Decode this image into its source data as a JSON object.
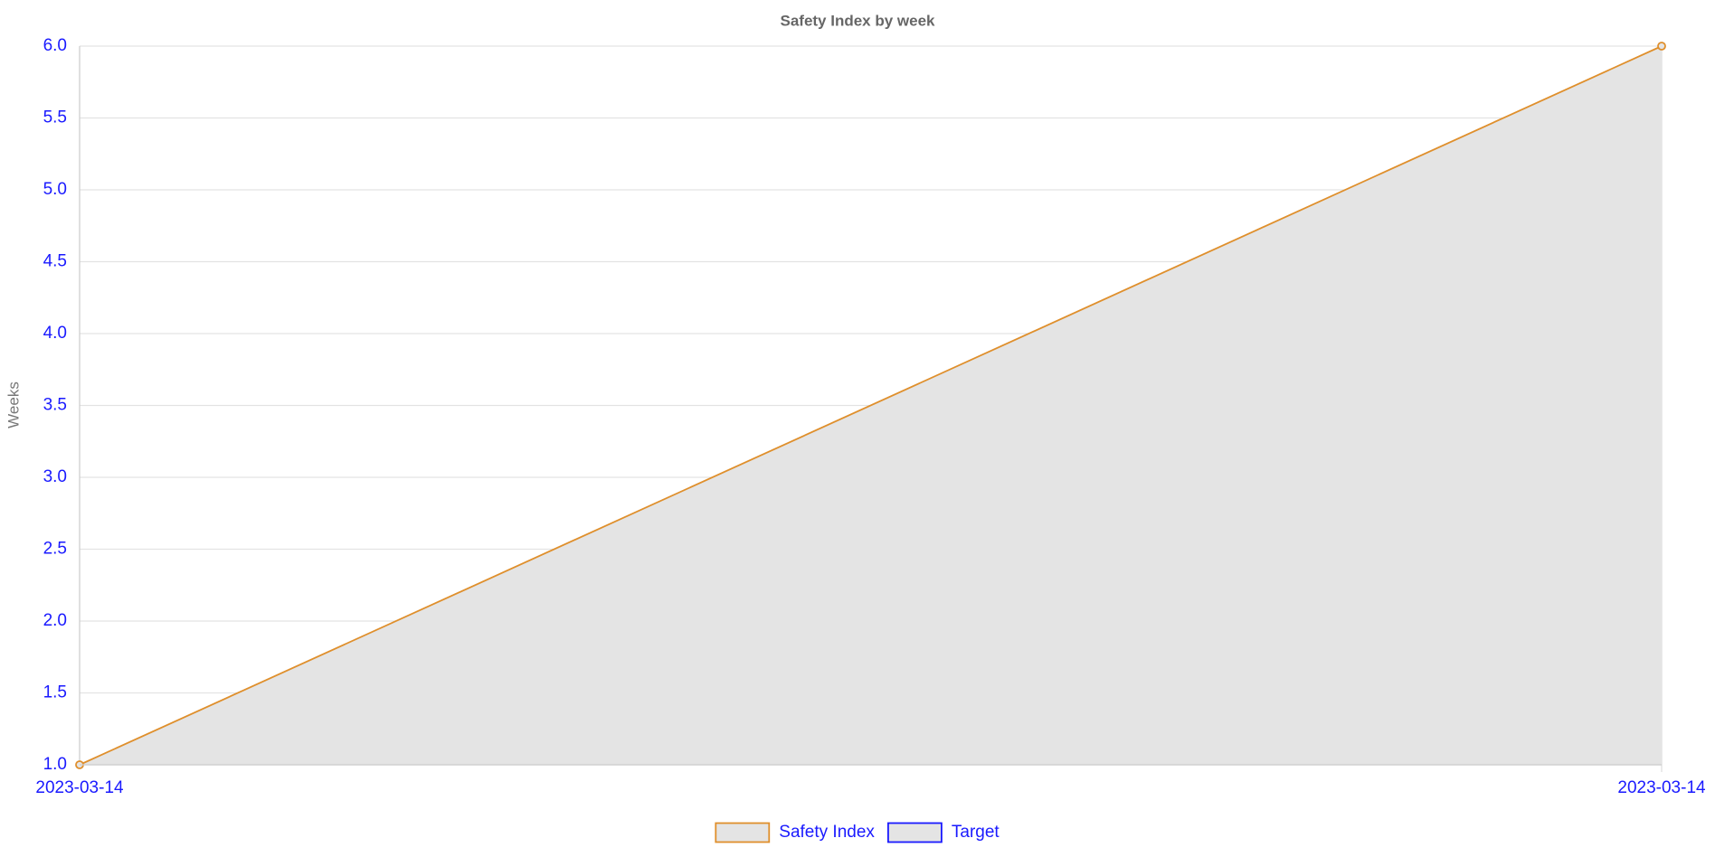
{
  "chart_data": {
    "type": "line",
    "title": "Safety Index by week",
    "y_label": "Weeks",
    "categories": [
      "2023-03-14",
      "2023-03-14"
    ],
    "series": [
      {
        "name": "Safety Index",
        "color": "#df8f2c",
        "fill": "#e4e4e4",
        "values": [
          1,
          6
        ]
      },
      {
        "name": "Target",
        "color": "#1a1aff",
        "fill": "#e4e4e4",
        "values": [
          null,
          null
        ]
      }
    ],
    "ylim": [
      1,
      6
    ],
    "yticks": [
      {
        "value": 1,
        "label": "1.0"
      },
      1.5,
      {
        "value": 2,
        "label": "2.0"
      },
      2.5,
      {
        "value": 3,
        "label": "3.0"
      },
      3.5,
      {
        "value": 4,
        "label": "4.0"
      },
      4.5,
      {
        "value": 5,
        "label": "5.0"
      },
      5.5,
      {
        "value": 6,
        "label": "6.0"
      }
    ],
    "grid": true,
    "legend": "bottom"
  }
}
